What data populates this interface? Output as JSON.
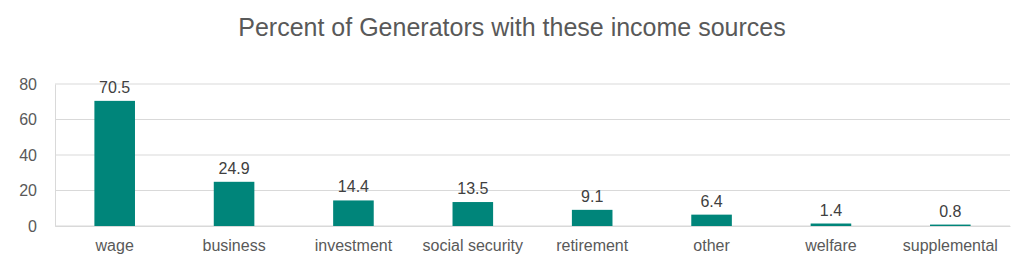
{
  "chart_data": {
    "type": "bar",
    "title": "Percent of Generators with these income sources",
    "categories": [
      "wage",
      "business",
      "investment",
      "social security",
      "retirement",
      "other",
      "welfare",
      "supplemental"
    ],
    "values": [
      70.5,
      24.9,
      14.4,
      13.5,
      9.1,
      6.4,
      1.4,
      0.8
    ],
    "color": "#00857a",
    "ylim": [
      0,
      80
    ],
    "yticks": [
      0,
      20,
      40,
      60,
      80
    ],
    "grid": true,
    "data_labels": true
  }
}
